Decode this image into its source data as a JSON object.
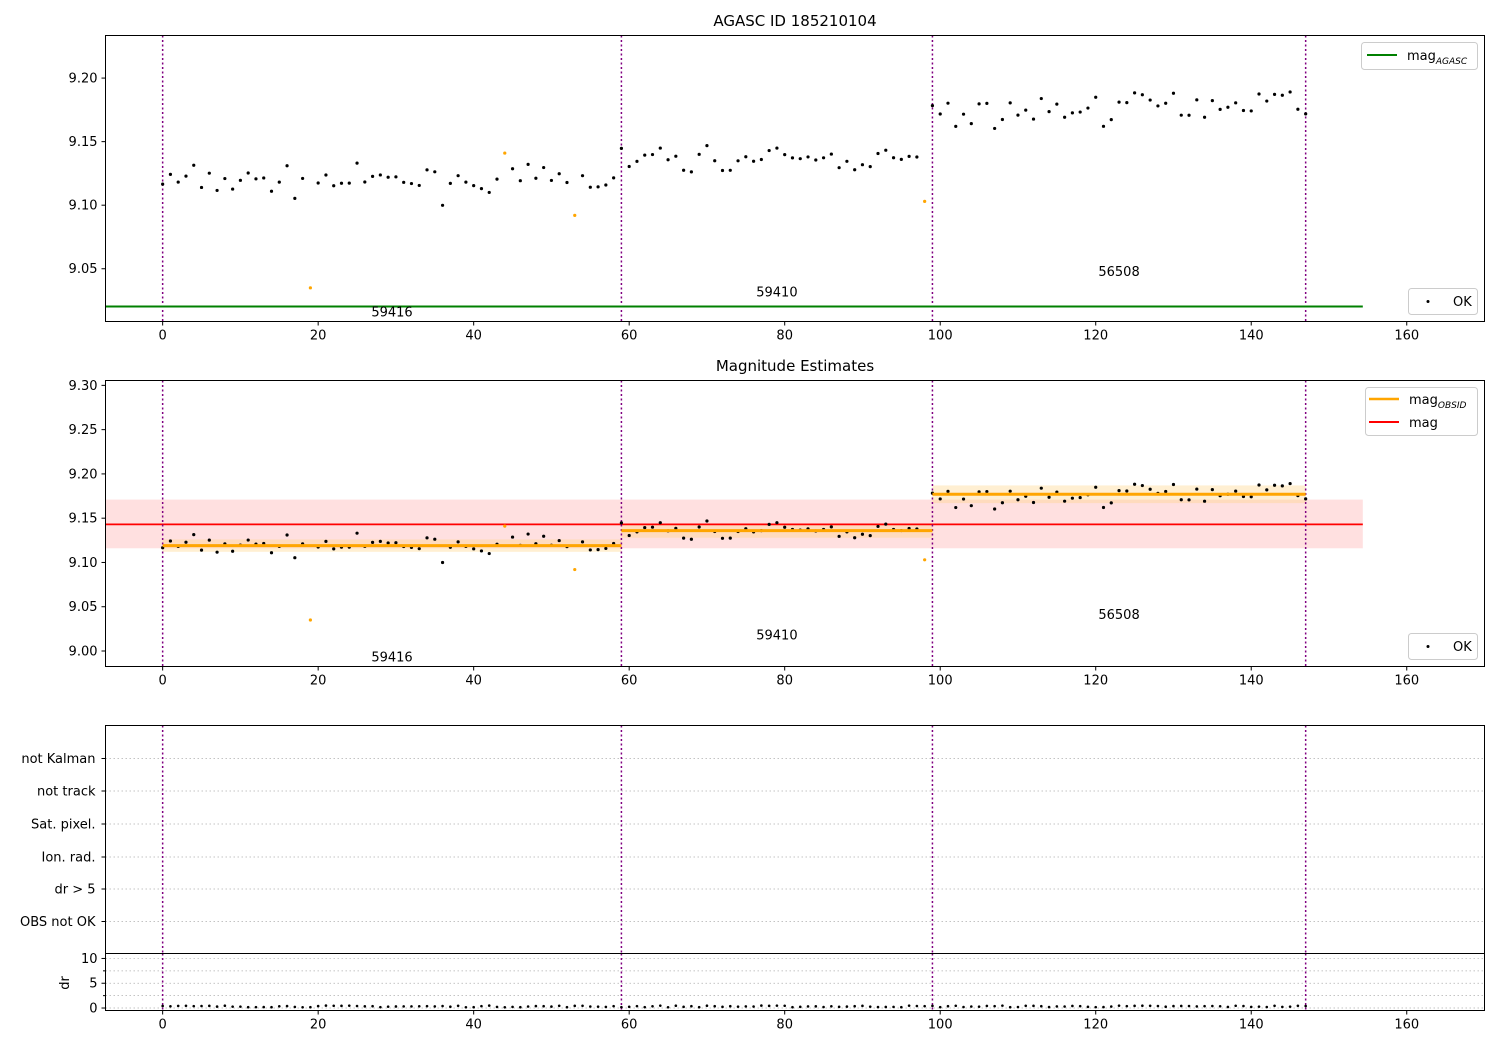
{
  "colors": {
    "ok_point": "#000000",
    "not_ok_point": "#ffa500",
    "agasc_line": "#008000",
    "obsid_line": "#ffa500",
    "obsid_band": "#ffd27f",
    "mag_line": "#ff0000",
    "mag_band": "#ffcccc",
    "obsid_boundary": "#800080",
    "grid": "#b0b0b0"
  },
  "chart_data": [
    {
      "type": "scatter",
      "title": "AGASC ID 185210104",
      "xlim": [
        -7.35,
        170.0
      ],
      "ylim": [
        9.0085,
        9.2335
      ],
      "xticks": [
        "0",
        "20",
        "40",
        "60",
        "80",
        "100",
        "120",
        "140",
        "160"
      ],
      "yticks": [
        "9.05",
        "9.10",
        "9.15",
        "9.20"
      ],
      "legend": [
        {
          "label": "mag",
          "sub": "AGASC",
          "position": "top-right"
        },
        {
          "label": "OK",
          "position": "bottom-right"
        }
      ],
      "agasc_mag": 9.0203,
      "agasc_x_range": [
        -7.35,
        154.35
      ],
      "obsid_boundaries": [
        0,
        59,
        99,
        147
      ],
      "obsid_labels": [
        {
          "text": "59416",
          "x": 29.5,
          "y": 9.0155
        },
        {
          "text": "59410",
          "x": 79,
          "y": 9.0315
        },
        {
          "text": "56508",
          "x": 123,
          "y": 9.0475
        }
      ],
      "not_ok_points": [
        {
          "x": 19,
          "y": 9.035
        },
        {
          "x": 44,
          "y": 9.141
        },
        {
          "x": 53,
          "y": 9.092
        },
        {
          "x": 98,
          "y": 9.103
        }
      ]
    },
    {
      "type": "scatter",
      "title": "Magnitude Estimates",
      "xlim": [
        -7.35,
        170.0
      ],
      "ylim": [
        8.9825,
        9.3055
      ],
      "xticks": [
        "0",
        "20",
        "40",
        "60",
        "80",
        "100",
        "120",
        "140",
        "160"
      ],
      "yticks": [
        "9.00",
        "9.05",
        "9.10",
        "9.15",
        "9.20",
        "9.25",
        "9.30"
      ],
      "legend": [
        {
          "label": "mag",
          "sub": "OBSID",
          "position": "top-right"
        },
        {
          "label": "mag",
          "position": "top-right"
        },
        {
          "label": "OK",
          "position": "bottom-right"
        }
      ],
      "mag": 9.143,
      "mag_band": [
        9.116,
        9.171
      ],
      "mag_x_range": [
        -7.35,
        154.35
      ],
      "obsid_mags": [
        {
          "x0": 0,
          "x1": 59,
          "mag": 9.119,
          "band": [
            9.112,
            9.126
          ]
        },
        {
          "x0": 59,
          "x1": 99,
          "mag": 9.136,
          "band": [
            9.128,
            9.143
          ]
        },
        {
          "x0": 99,
          "x1": 147,
          "mag": 9.177,
          "band": [
            9.167,
            9.187
          ]
        }
      ],
      "obsid_labels": [
        {
          "text": "59416",
          "x": 29.5,
          "y": 8.9925
        },
        {
          "text": "59410",
          "x": 79,
          "y": 9.0175
        },
        {
          "text": "56508",
          "x": 123,
          "y": 9.0405
        }
      ]
    },
    {
      "type": "scatter",
      "xlim": [
        -7.35,
        170.0
      ],
      "categories": [
        "not Kalman",
        "not track",
        "Sat. pixel.",
        "Ion. rad.",
        "dr > 5",
        "OBS not OK"
      ],
      "flags": []
    },
    {
      "type": "scatter",
      "ylabel": "dr",
      "xlim": [
        -7.35,
        170.0
      ],
      "ylim": [
        -0.5,
        11.0
      ],
      "xticks": [
        "0",
        "20",
        "40",
        "60",
        "80",
        "100",
        "120",
        "140",
        "160"
      ],
      "yticks": [
        "0",
        "5",
        "10"
      ]
    }
  ]
}
